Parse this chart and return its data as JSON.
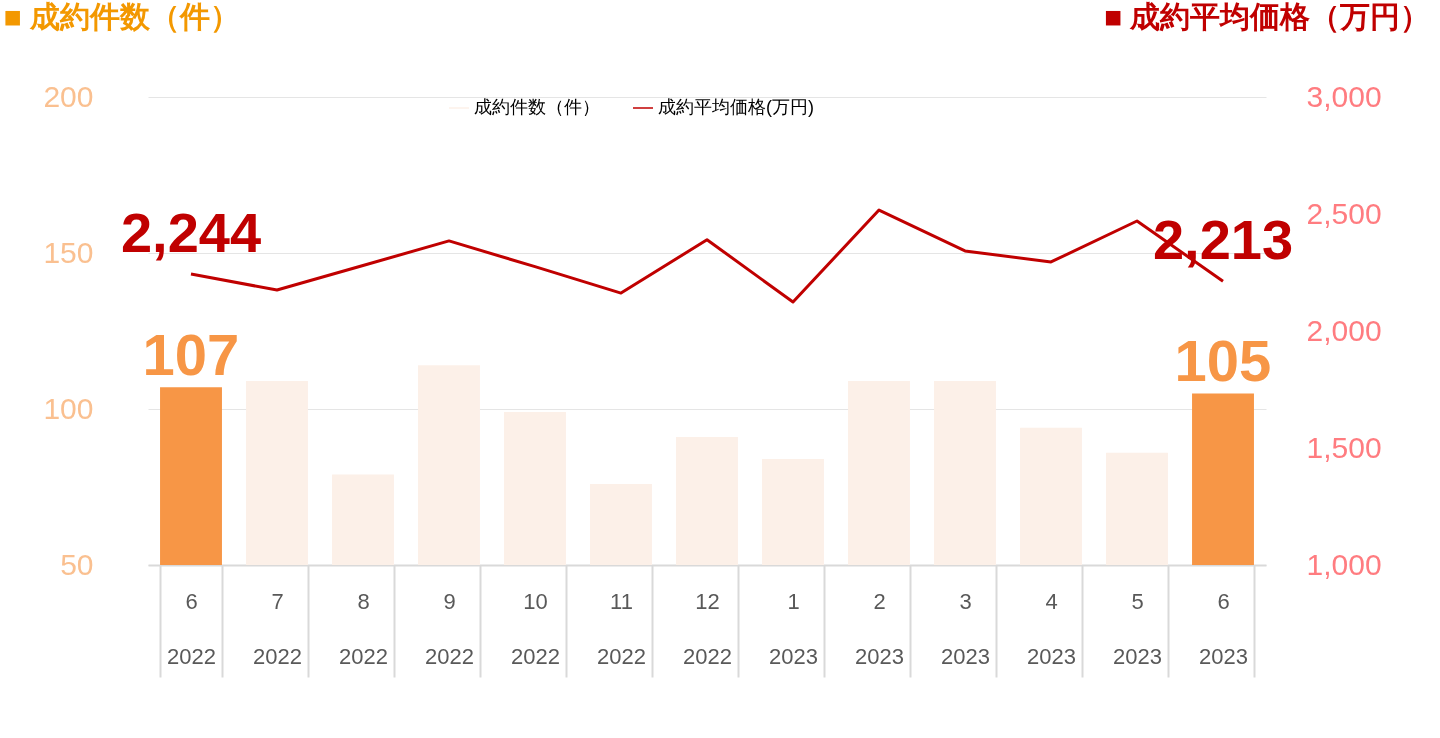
{
  "chart_data": {
    "type": "bar",
    "ylabel": "■ 成約件数（件）",
    "y2label": "■ 成約平均価格（万円）",
    "categories": [
      "6\n2022",
      "7\n2022",
      "8\n2022",
      "9\n2022",
      "10\n2022",
      "11\n2022",
      "12\n2022",
      "1\n2023",
      "2\n2023",
      "3\n2023",
      "4\n2023",
      "5\n2023",
      "6\n2023"
    ],
    "series": [
      {
        "name": "成約件数（件）",
        "color": "#fcf0e8",
        "colors": [
          "#f79646",
          "#fcf0e8",
          "#fcf0e8",
          "#fcf0e8",
          "#fcf0e8",
          "#fcf0e8",
          "#fcf0e8",
          "#fcf0e8",
          "#fcf0e8",
          "#fcf0e8",
          "#fcf0e8",
          "#fcf0e8",
          "#f79646"
        ],
        "values": [
          107,
          109,
          79,
          114,
          99,
          76,
          91,
          84,
          109,
          109,
          94,
          86,
          105
        ],
        "value_labels": [
          "107",
          null,
          null,
          null,
          null,
          null,
          null,
          null,
          null,
          null,
          null,
          null,
          "105"
        ]
      },
      {
        "name": "成約平均価格(万円)",
        "type": "line",
        "axis": "y2",
        "color": "#c00000",
        "values": [
          2244,
          2175,
          2280,
          2385,
          2275,
          2162,
          2390,
          2124,
          2517,
          2342,
          2295,
          2470,
          2213
        ],
        "value_labels": [
          "2,244",
          null,
          null,
          null,
          null,
          null,
          null,
          null,
          null,
          null,
          null,
          null,
          "2,213"
        ]
      }
    ],
    "ylim": [
      50,
      200
    ],
    "yticks": [
      50,
      100,
      150,
      200
    ],
    "y2lim": [
      1000,
      3000
    ],
    "y2ticks": [
      {
        "value": 1000,
        "label": "1,000"
      },
      {
        "value": 1500,
        "label": "1,500"
      },
      {
        "value": 2000,
        "label": "2,000"
      },
      {
        "value": 2500,
        "label": "2,500"
      },
      {
        "value": 3000,
        "label": "3,000"
      }
    ],
    "grid": "y",
    "legend": "top"
  }
}
